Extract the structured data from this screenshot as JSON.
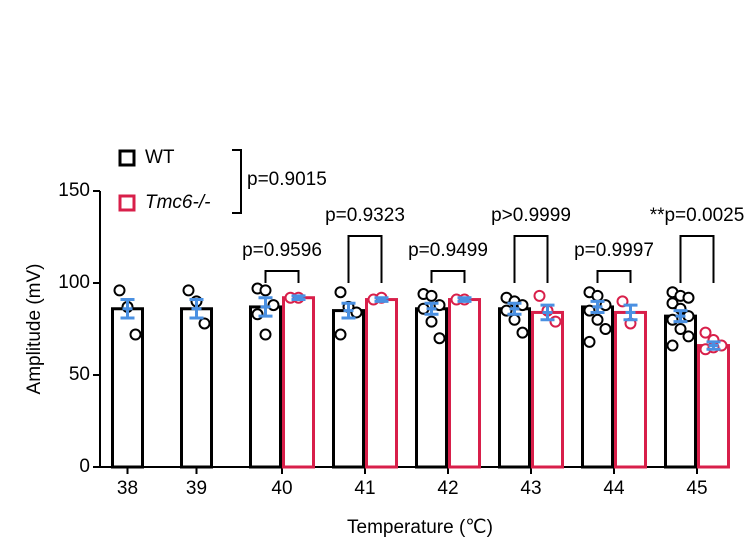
{
  "chart_data": {
    "type": "bar",
    "x_label": "Temperature (℃)",
    "y_label": "Amplitude (mV)",
    "categories": [
      "38",
      "39",
      "40",
      "41",
      "42",
      "43",
      "44",
      "45"
    ],
    "series": [
      {
        "name": "WT",
        "color": "#000000",
        "values": [
          86,
          86,
          87,
          85,
          86,
          86,
          87,
          82
        ],
        "errors": [
          5,
          5,
          5,
          4,
          3,
          3,
          3,
          3
        ],
        "points": [
          [
            96,
            87,
            72
          ],
          [
            96,
            90,
            78
          ],
          [
            97,
            96,
            88,
            83,
            72
          ],
          [
            95,
            87,
            84,
            72
          ],
          [
            94,
            93,
            88,
            86,
            79,
            70
          ],
          [
            92,
            90,
            88,
            85,
            80,
            73
          ],
          [
            95,
            93,
            88,
            85,
            80,
            75,
            68
          ],
          [
            95,
            93,
            92,
            89,
            86,
            82,
            80,
            75,
            71,
            66
          ]
        ]
      },
      {
        "name": "Tmc6-/-",
        "color": "#d81f4a",
        "values": [
          null,
          null,
          92,
          91,
          91,
          84,
          84,
          66
        ],
        "errors": [
          null,
          null,
          1,
          1,
          1,
          4,
          4,
          2
        ],
        "points": [
          null,
          null,
          [
            92,
            92
          ],
          [
            91,
            92
          ],
          [
            91,
            91
          ],
          [
            93,
            85,
            79
          ],
          [
            90,
            78
          ],
          [
            73,
            69,
            66,
            64,
            65
          ]
        ]
      }
    ],
    "error_color": "#4a90e2",
    "comparisons": [
      null,
      null,
      "p=0.9596",
      "p=0.9323",
      "p=0.9499",
      "p>0.9999",
      "p=0.9997",
      "**p=0.0025"
    ],
    "overall_comparison": "p=0.9015",
    "ylim": [
      0,
      150
    ],
    "yticks": [
      0,
      50,
      100,
      150
    ],
    "grid": false
  }
}
